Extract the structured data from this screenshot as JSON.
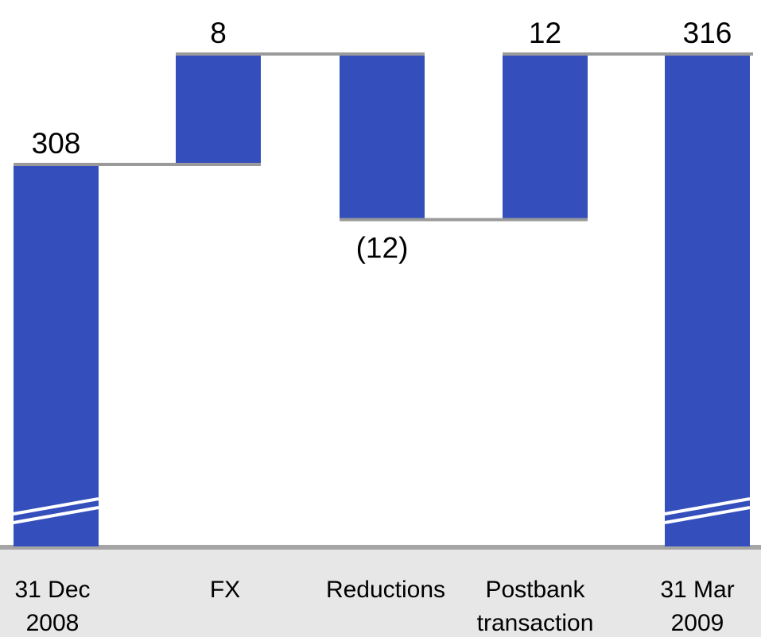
{
  "chart_data": {
    "type": "bar",
    "subtype": "waterfall",
    "categories": [
      [
        "31 Dec",
        "2008"
      ],
      [
        "FX"
      ],
      [
        "Reductions"
      ],
      [
        "Postbank",
        "transaction"
      ],
      [
        "31 Mar",
        "2009"
      ]
    ],
    "value_labels": [
      "308",
      "8",
      "(12)",
      "12",
      "316"
    ],
    "bars": [
      {
        "kind": "total",
        "start": 0,
        "end": 308
      },
      {
        "kind": "delta",
        "start": 308,
        "end": 316
      },
      {
        "kind": "delta",
        "start": 316,
        "end": 304
      },
      {
        "kind": "delta",
        "start": 304,
        "end": 316
      },
      {
        "kind": "total",
        "start": 0,
        "end": 316
      }
    ],
    "axis_break": true,
    "colors": {
      "bar": "#344fbc",
      "connector": "#9a9a9a",
      "axis_band": "#a5a5a5",
      "label_band": "#e7e7e7",
      "text": "#000000"
    }
  }
}
